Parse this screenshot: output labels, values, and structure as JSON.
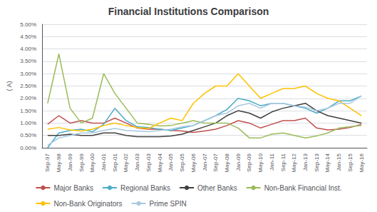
{
  "chart_data": {
    "type": "line",
    "title": "Financial Institutions Comparison",
    "ylabel": "( A)",
    "categories": [
      "Sep-97",
      "May-98",
      "Jan-99",
      "Sep-99",
      "May-00",
      "Jan-01",
      "Sep-01",
      "May-02",
      "Jan-03",
      "Sep-03",
      "May-04",
      "Jan-05",
      "Sep-05",
      "May-06",
      "Jan-07",
      "Sep-07",
      "May-08",
      "Jan-09",
      "Sep-09",
      "May-10",
      "Jan-11",
      "Sep-11",
      "May-12",
      "Jan-13",
      "Sep-13",
      "May-14",
      "Jan-15",
      "Sep-15",
      "May-16"
    ],
    "series": [
      {
        "name": "Major Banks",
        "color": "#C0504D",
        "values": [
          0.0095,
          0.013,
          0.01,
          0.011,
          0.01,
          0.01,
          0.012,
          0.01,
          0.008,
          0.0075,
          0.0075,
          0.007,
          0.0068,
          0.0062,
          0.0068,
          0.0075,
          0.009,
          0.011,
          0.01,
          0.008,
          0.0095,
          0.011,
          0.011,
          0.012,
          0.008,
          0.0072,
          0.0075,
          0.0082,
          0.0095
        ]
      },
      {
        "name": "Regional Banks",
        "color": "#4BACC6",
        "values": [
          0.0,
          0.006,
          0.007,
          0.0075,
          0.0065,
          0.0095,
          0.016,
          0.011,
          0.0085,
          0.0082,
          0.0075,
          0.007,
          0.008,
          0.009,
          0.011,
          0.013,
          0.0155,
          0.02,
          0.019,
          0.017,
          0.018,
          0.018,
          0.017,
          0.016,
          0.014,
          0.016,
          0.019,
          0.019,
          0.021
        ]
      },
      {
        "name": "Other Banks",
        "color": "#404040",
        "values": [
          0.005,
          0.005,
          0.0055,
          0.005,
          0.005,
          0.006,
          0.006,
          0.005,
          0.0045,
          0.0045,
          0.0045,
          0.0048,
          0.0055,
          0.007,
          0.0085,
          0.01,
          0.013,
          0.015,
          0.014,
          0.012,
          0.0145,
          0.016,
          0.017,
          0.018,
          0.015,
          0.013,
          0.012,
          0.011,
          0.01
        ]
      },
      {
        "name": "Non-Bank Financial Inst.",
        "color": "#9BBB59",
        "values": [
          0.018,
          0.038,
          0.016,
          0.01,
          0.012,
          0.03,
          0.022,
          0.016,
          0.01,
          0.0095,
          0.0088,
          0.009,
          0.01,
          0.011,
          0.01,
          0.01,
          0.01,
          0.008,
          0.004,
          0.004,
          0.0055,
          0.006,
          0.005,
          0.004,
          0.0048,
          0.006,
          0.008,
          0.0085,
          0.009
        ]
      },
      {
        "name": "Non-Bank Originators",
        "color": "#FFC000",
        "values": [
          0.0075,
          0.0082,
          0.0072,
          0.0068,
          0.0075,
          0.009,
          0.01,
          0.009,
          0.0082,
          0.0078,
          0.01,
          0.012,
          0.011,
          0.018,
          0.022,
          0.025,
          0.025,
          0.03,
          0.025,
          0.02,
          0.022,
          0.024,
          0.024,
          0.025,
          0.022,
          0.02,
          0.019,
          0.016,
          0.013
        ]
      },
      {
        "name": "Prime SPIN",
        "color": "#A8C8E0",
        "values": [
          0.001,
          0.004,
          0.005,
          0.006,
          0.006,
          0.007,
          0.0078,
          0.007,
          0.0068,
          0.0065,
          0.007,
          0.0075,
          0.0085,
          0.009,
          0.011,
          0.013,
          0.014,
          0.017,
          0.018,
          0.016,
          0.018,
          0.018,
          0.017,
          0.0165,
          0.015,
          0.016,
          0.018,
          0.018,
          0.021
        ]
      }
    ],
    "ylim": [
      0.0,
      0.05
    ],
    "yticks": [
      {
        "value": 0.0,
        "label": "0.00%"
      },
      {
        "value": 0.005,
        "label": "0.50%"
      },
      {
        "value": 0.01,
        "label": "1.00%"
      },
      {
        "value": 0.015,
        "label": "1.50%"
      },
      {
        "value": 0.02,
        "label": "2.00%"
      },
      {
        "value": 0.025,
        "label": "2.50%"
      },
      {
        "value": 0.03,
        "label": "3.00%"
      },
      {
        "value": 0.035,
        "label": "3.50%"
      },
      {
        "value": 0.04,
        "label": "4.00%"
      },
      {
        "value": 0.045,
        "label": "4.50%"
      },
      {
        "value": 0.05,
        "label": "5.00%"
      }
    ],
    "grid": true,
    "legend": "bottom"
  }
}
